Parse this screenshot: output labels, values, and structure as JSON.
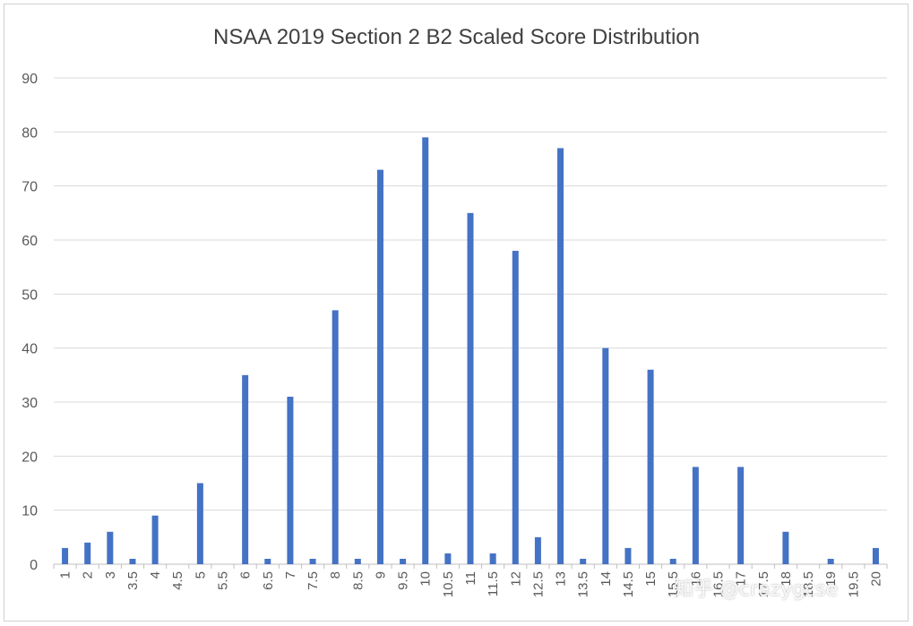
{
  "chart_data": {
    "type": "bar",
    "title": "NSAA 2019 Section 2 B2 Scaled Score Distribution",
    "xlabel": "",
    "ylabel": "",
    "ylim": [
      0,
      90
    ],
    "yticks": [
      0,
      10,
      20,
      30,
      40,
      50,
      60,
      70,
      80,
      90
    ],
    "grid": true,
    "legend": "none",
    "categories": [
      "1",
      "2",
      "3",
      "3.5",
      "4",
      "4.5",
      "5",
      "5.5",
      "6",
      "6.5",
      "7",
      "7.5",
      "8",
      "8.5",
      "9",
      "9.5",
      "10",
      "10.5",
      "11",
      "11.5",
      "12",
      "12.5",
      "13",
      "13.5",
      "14",
      "14.5",
      "15",
      "15.5",
      "16",
      "16.5",
      "17",
      "17.5",
      "18",
      "18.5",
      "19",
      "19.5",
      "20"
    ],
    "values": [
      3,
      4,
      6,
      1,
      9,
      0,
      15,
      0,
      35,
      1,
      31,
      1,
      47,
      1,
      73,
      1,
      79,
      2,
      65,
      2,
      58,
      5,
      77,
      1,
      40,
      3,
      36,
      1,
      18,
      0,
      18,
      0,
      6,
      0,
      1,
      0,
      3
    ],
    "bar_color": "#4472C4"
  },
  "watermark": {
    "text": "知乎 @crazygcse"
  }
}
